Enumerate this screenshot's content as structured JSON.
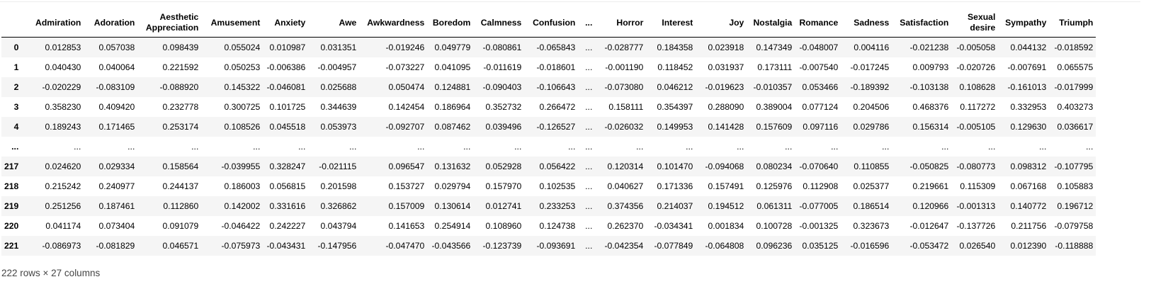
{
  "columns": [
    "",
    "Admiration",
    "Adoration",
    "Aesthetic Appreciation",
    "Amusement",
    "Anxiety",
    "Awe",
    "Awkwardness",
    "Boredom",
    "Calmness",
    "Confusion",
    "...",
    "Horror",
    "Interest",
    "Joy",
    "Nostalgia",
    "Romance",
    "Sadness",
    "Satisfaction",
    "Sexual desire",
    "Sympathy",
    "Triumph"
  ],
  "rows": [
    {
      "index": "0",
      "values": [
        "0.012853",
        "0.057038",
        "0.098439",
        "0.055024",
        "0.010987",
        "0.031351",
        "-0.019246",
        "0.049779",
        "-0.080861",
        "-0.065843",
        "...",
        "-0.028777",
        "0.184358",
        "0.023918",
        "0.147349",
        "-0.048007",
        "0.004116",
        "-0.021238",
        "-0.005058",
        "0.044132",
        "-0.018592"
      ]
    },
    {
      "index": "1",
      "values": [
        "0.040430",
        "0.040064",
        "0.221592",
        "0.050253",
        "-0.006386",
        "-0.004957",
        "-0.073227",
        "0.041095",
        "-0.011619",
        "-0.018601",
        "...",
        "-0.001190",
        "0.118452",
        "0.031937",
        "0.173111",
        "-0.007540",
        "-0.017245",
        "0.009793",
        "-0.020726",
        "-0.007691",
        "0.065575"
      ]
    },
    {
      "index": "2",
      "values": [
        "-0.020229",
        "-0.083109",
        "-0.088920",
        "0.145322",
        "-0.046081",
        "0.025688",
        "0.050474",
        "0.124881",
        "-0.090403",
        "-0.106643",
        "...",
        "-0.073080",
        "0.046212",
        "-0.019623",
        "-0.010357",
        "0.053466",
        "-0.189392",
        "-0.103138",
        "0.108628",
        "-0.161013",
        "-0.017999"
      ]
    },
    {
      "index": "3",
      "values": [
        "0.358230",
        "0.409420",
        "0.232778",
        "0.300725",
        "0.101725",
        "0.344639",
        "0.142454",
        "0.186964",
        "0.352732",
        "0.266472",
        "...",
        "0.158111",
        "0.354397",
        "0.288090",
        "0.389004",
        "0.077124",
        "0.204506",
        "0.468376",
        "0.117272",
        "0.332953",
        "0.403273"
      ]
    },
    {
      "index": "4",
      "values": [
        "0.189243",
        "0.171465",
        "0.253174",
        "0.108526",
        "0.045518",
        "0.053973",
        "-0.092707",
        "0.087462",
        "0.039496",
        "-0.126527",
        "...",
        "-0.026032",
        "0.149953",
        "0.141428",
        "0.157609",
        "0.097116",
        "0.029786",
        "0.156314",
        "-0.005105",
        "0.129630",
        "0.036617"
      ]
    },
    {
      "index": "...",
      "values": [
        "...",
        "...",
        "...",
        "...",
        "...",
        "...",
        "...",
        "...",
        "...",
        "...",
        "...",
        "...",
        "...",
        "...",
        "...",
        "...",
        "...",
        "...",
        "...",
        "...",
        "..."
      ]
    },
    {
      "index": "217",
      "values": [
        "0.024620",
        "0.029334",
        "0.158564",
        "-0.039955",
        "0.328247",
        "-0.021115",
        "0.096547",
        "0.131632",
        "0.052928",
        "0.056422",
        "...",
        "0.120314",
        "0.101470",
        "-0.094068",
        "0.080234",
        "-0.070640",
        "0.110855",
        "-0.050825",
        "-0.080773",
        "0.098312",
        "-0.107795"
      ]
    },
    {
      "index": "218",
      "values": [
        "0.215242",
        "0.240977",
        "0.244137",
        "0.186003",
        "0.056815",
        "0.201598",
        "0.153727",
        "0.029794",
        "0.157970",
        "0.102535",
        "...",
        "0.040627",
        "0.171336",
        "0.157491",
        "0.125976",
        "0.112908",
        "0.025377",
        "0.219661",
        "0.115309",
        "0.067168",
        "0.105883"
      ]
    },
    {
      "index": "219",
      "values": [
        "0.251256",
        "0.187461",
        "0.112860",
        "0.142002",
        "0.331616",
        "0.326862",
        "0.157009",
        "0.130614",
        "0.012741",
        "0.233253",
        "...",
        "0.374356",
        "0.214037",
        "0.194512",
        "0.061311",
        "-0.077005",
        "0.186514",
        "0.120966",
        "-0.001313",
        "0.140772",
        "0.196712"
      ]
    },
    {
      "index": "220",
      "values": [
        "0.041174",
        "0.073404",
        "0.091079",
        "-0.046422",
        "0.242227",
        "0.043794",
        "0.141653",
        "0.254914",
        "0.108960",
        "0.124738",
        "...",
        "0.262370",
        "-0.034341",
        "0.001834",
        "0.100728",
        "-0.001325",
        "0.323673",
        "-0.012647",
        "-0.137726",
        "0.211756",
        "-0.079758"
      ]
    },
    {
      "index": "221",
      "values": [
        "-0.086973",
        "-0.081829",
        "0.046571",
        "-0.075973",
        "-0.043431",
        "-0.147956",
        "-0.047470",
        "-0.043566",
        "-0.123739",
        "-0.093691",
        "...",
        "-0.042354",
        "-0.077849",
        "-0.064808",
        "0.096236",
        "0.035125",
        "-0.016596",
        "-0.053472",
        "0.026540",
        "0.012390",
        "-0.118888"
      ]
    }
  ],
  "shape_text": "222 rows × 27 columns"
}
